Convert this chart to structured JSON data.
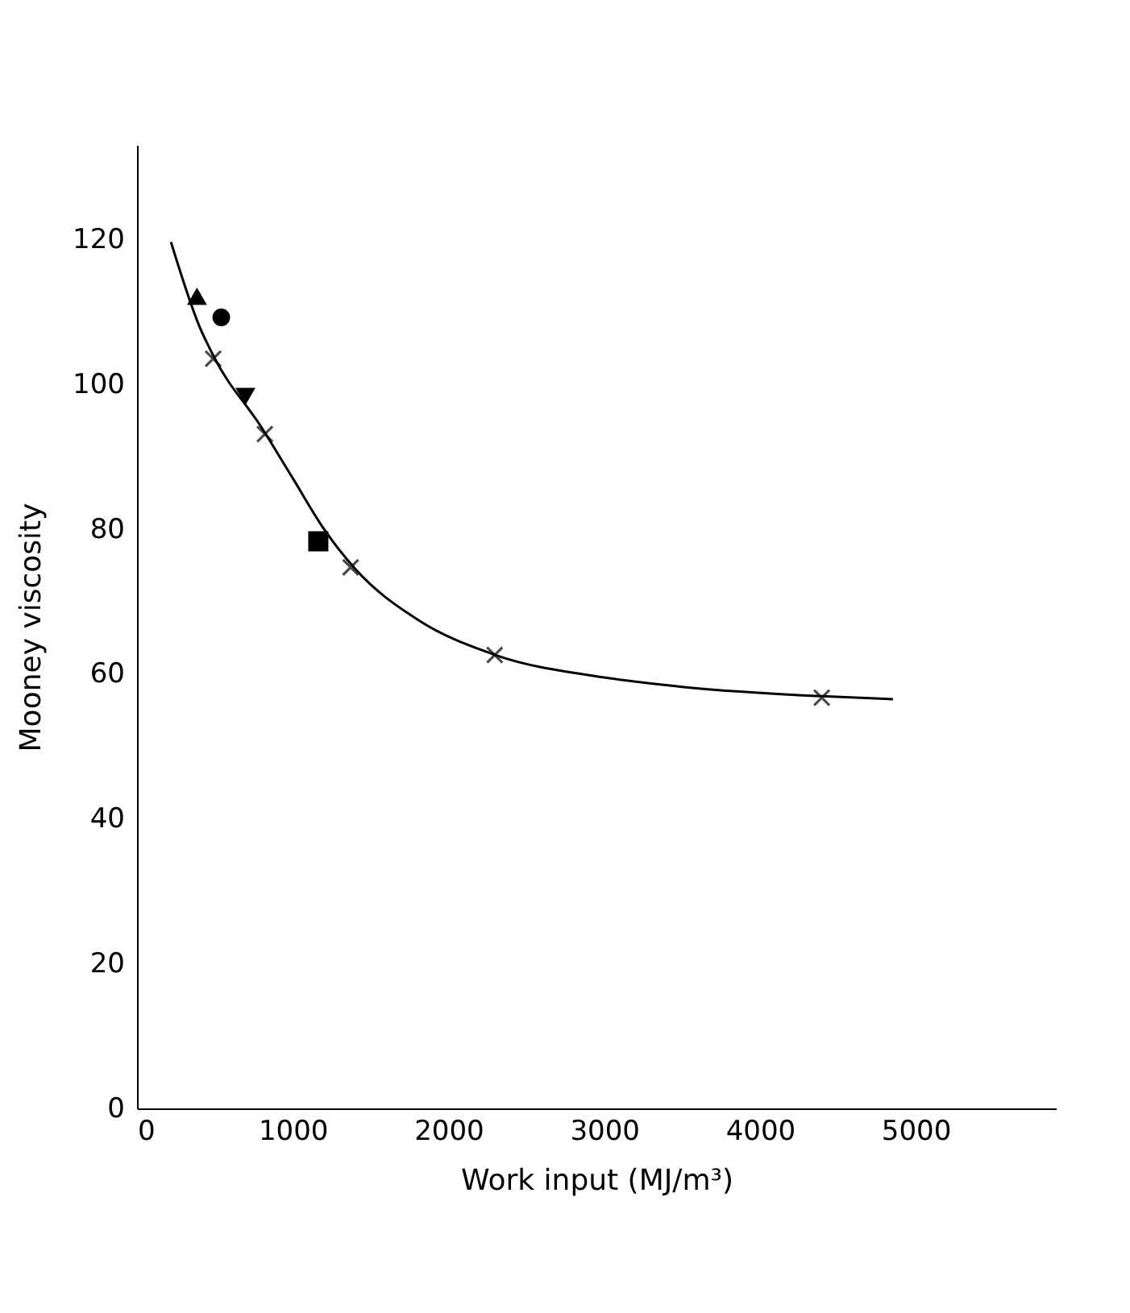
{
  "chart_data": {
    "type": "scatter",
    "xlabel": "Work input (MJ/m³)",
    "ylabel": "Mooney viscosity",
    "xlim": [
      0,
      5900
    ],
    "ylim": [
      0,
      133
    ],
    "xticks": [
      0,
      1000,
      2000,
      3000,
      4000,
      5000
    ],
    "yticks": [
      0,
      20,
      40,
      60,
      80,
      100,
      120
    ],
    "grid": false,
    "series": [
      {
        "type": "line",
        "color": "#000000",
        "marker": "none",
        "x": [
          218,
          400,
          500,
          800,
          1000,
          1200,
          1400,
          1800,
          2300,
          3000,
          3500,
          4400,
          4854
        ],
        "values": [
          119.6,
          108,
          103.5,
          94,
          87,
          80,
          74.5,
          67.5,
          62.6,
          59.5,
          58.2,
          56.9,
          56.5
        ]
      },
      {
        "color": "#000000",
        "marker": "cross",
        "x": [
          489,
          821,
          1372,
          2297,
          4397
        ],
        "values": [
          103.5,
          93.1,
          74.7,
          62.6,
          56.7
        ]
      },
      {
        "color": "#000000",
        "marker": "triangle-down",
        "x": [
          696
        ],
        "values": [
          98.4
        ]
      },
      {
        "color": "#000000",
        "marker": "square",
        "x": [
          1164
        ],
        "values": [
          78.3
        ]
      },
      {
        "color": "#000000",
        "marker": "circle",
        "x": [
          541
        ],
        "values": [
          109.2
        ]
      },
      {
        "color": "#000000",
        "marker": "triangle",
        "x": [
          385
        ],
        "values": [
          112
        ]
      }
    ]
  }
}
